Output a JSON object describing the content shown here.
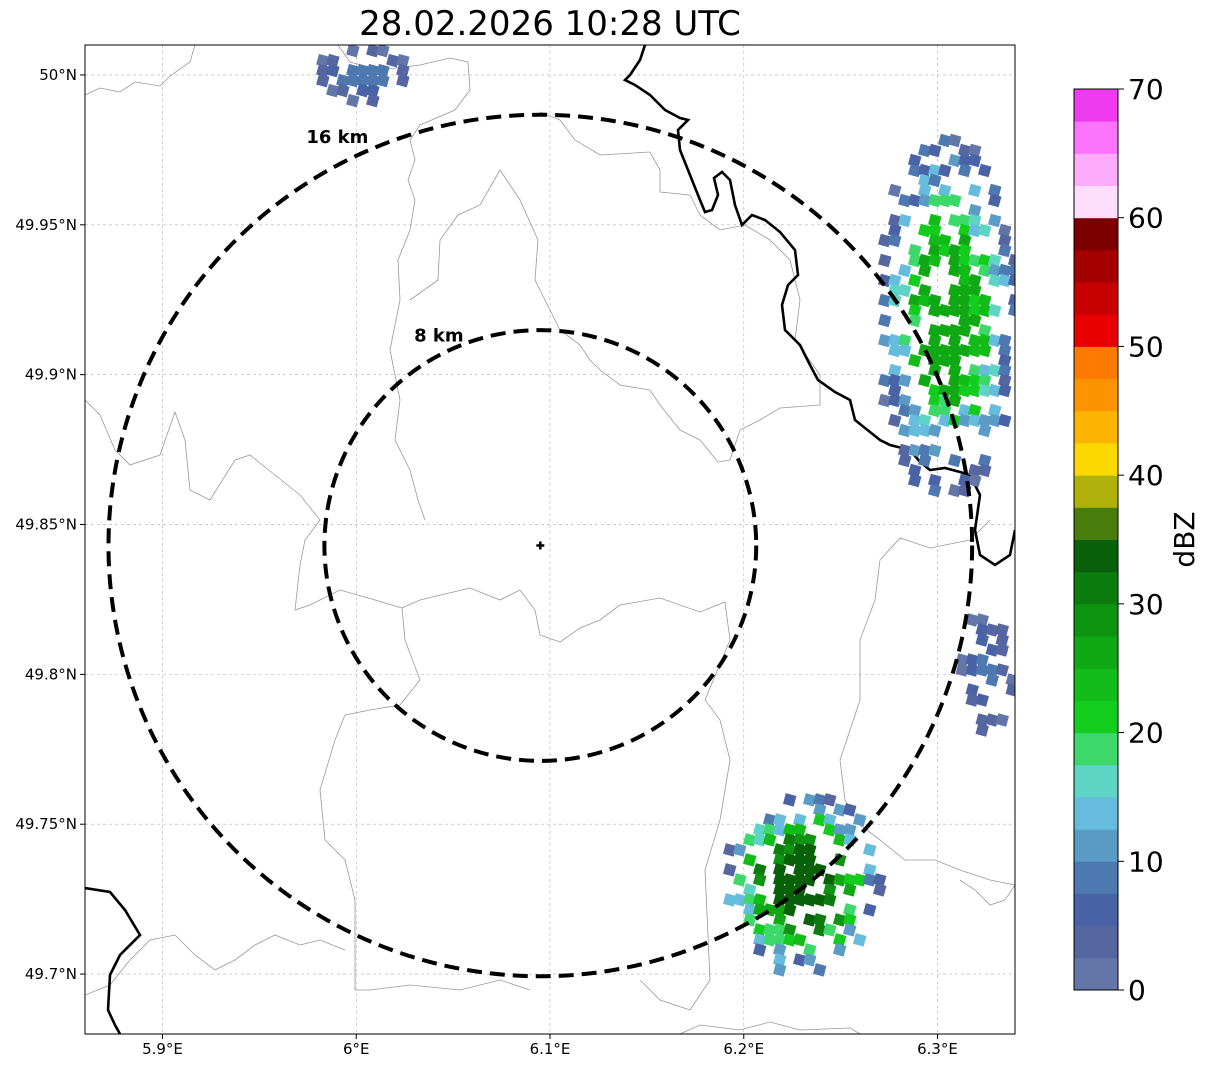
{
  "title": "28.02.2026 10:28 UTC",
  "map": {
    "lon_range": [
      5.86,
      6.34
    ],
    "lat_range": [
      49.68,
      50.01
    ],
    "lon_ticks": [
      {
        "value": 5.9,
        "label": "5.9°E"
      },
      {
        "value": 6.0,
        "label": "6°E"
      },
      {
        "value": 6.1,
        "label": "6.1°E"
      },
      {
        "value": 6.2,
        "label": "6.2°E"
      },
      {
        "value": 6.3,
        "label": "6.3°E"
      }
    ],
    "lat_ticks": [
      {
        "value": 50.0,
        "label": "50°N"
      },
      {
        "value": 49.95,
        "label": "49.95°N"
      },
      {
        "value": 49.9,
        "label": "49.9°N"
      },
      {
        "value": 49.85,
        "label": "49.85°N"
      },
      {
        "value": 49.8,
        "label": "49.8°N"
      },
      {
        "value": 49.75,
        "label": "49.75°N"
      },
      {
        "value": 49.7,
        "label": "49.7°N"
      }
    ],
    "grid": true,
    "center": {
      "lon": 6.095,
      "lat": 49.843
    },
    "rings": [
      {
        "radius_km": 8,
        "label": "8 km"
      },
      {
        "radius_km": 16,
        "label": "16 km"
      }
    ]
  },
  "colorbar": {
    "label": "dBZ",
    "min": 0,
    "max": 70,
    "ticks": [
      0,
      10,
      20,
      30,
      40,
      50,
      60,
      70
    ],
    "tick_labels": [
      "0",
      "10",
      "20",
      "30",
      "40",
      "50",
      "60",
      "70"
    ],
    "colors": [
      "#6476a8",
      "#5666a0",
      "#4a62a6",
      "#4e78b0",
      "#5a9cc6",
      "#66bcdc",
      "#5ed4c4",
      "#3cd86a",
      "#12cc1e",
      "#12bc18",
      "#10a814",
      "#0e9410",
      "#0c7c0e",
      "#086008",
      "#487c0c",
      "#b0b00a",
      "#fcd800",
      "#fcb400",
      "#fc9400",
      "#fc7a00",
      "#e80000",
      "#c80000",
      "#a40000",
      "#7c0000",
      "#fcdefc",
      "#fcacfc",
      "#fc74fc",
      "#f03cf0"
    ]
  },
  "colors": {
    "rings": "#000000",
    "border": "#000000",
    "admin": "#999999",
    "grid": "#b0b0b0"
  },
  "chart_data": {
    "type": "heatmap",
    "title": "28.02.2026 10:28 UTC",
    "xlabel": "",
    "ylabel": "",
    "colorbar_label": "dBZ",
    "xlim": [
      5.86,
      6.34
    ],
    "ylim": [
      49.68,
      50.01
    ],
    "echo_cells": [
      {
        "area": "north-west",
        "lon": [
          5.98,
          6.03
        ],
        "lat": [
          49.99,
          50.01
        ],
        "dbz": [
          0,
          8
        ]
      },
      {
        "area": "east",
        "lon": [
          6.27,
          6.34
        ],
        "lat": [
          49.86,
          49.98
        ],
        "dbz": [
          0,
          26
        ]
      },
      {
        "area": "east-small",
        "lon": [
          6.31,
          6.34
        ],
        "lat": [
          49.78,
          49.82
        ],
        "dbz": [
          0,
          8
        ]
      },
      {
        "area": "south-east",
        "lon": [
          6.19,
          6.27
        ],
        "lat": [
          49.7,
          49.76
        ],
        "dbz": [
          0,
          34
        ]
      }
    ]
  }
}
